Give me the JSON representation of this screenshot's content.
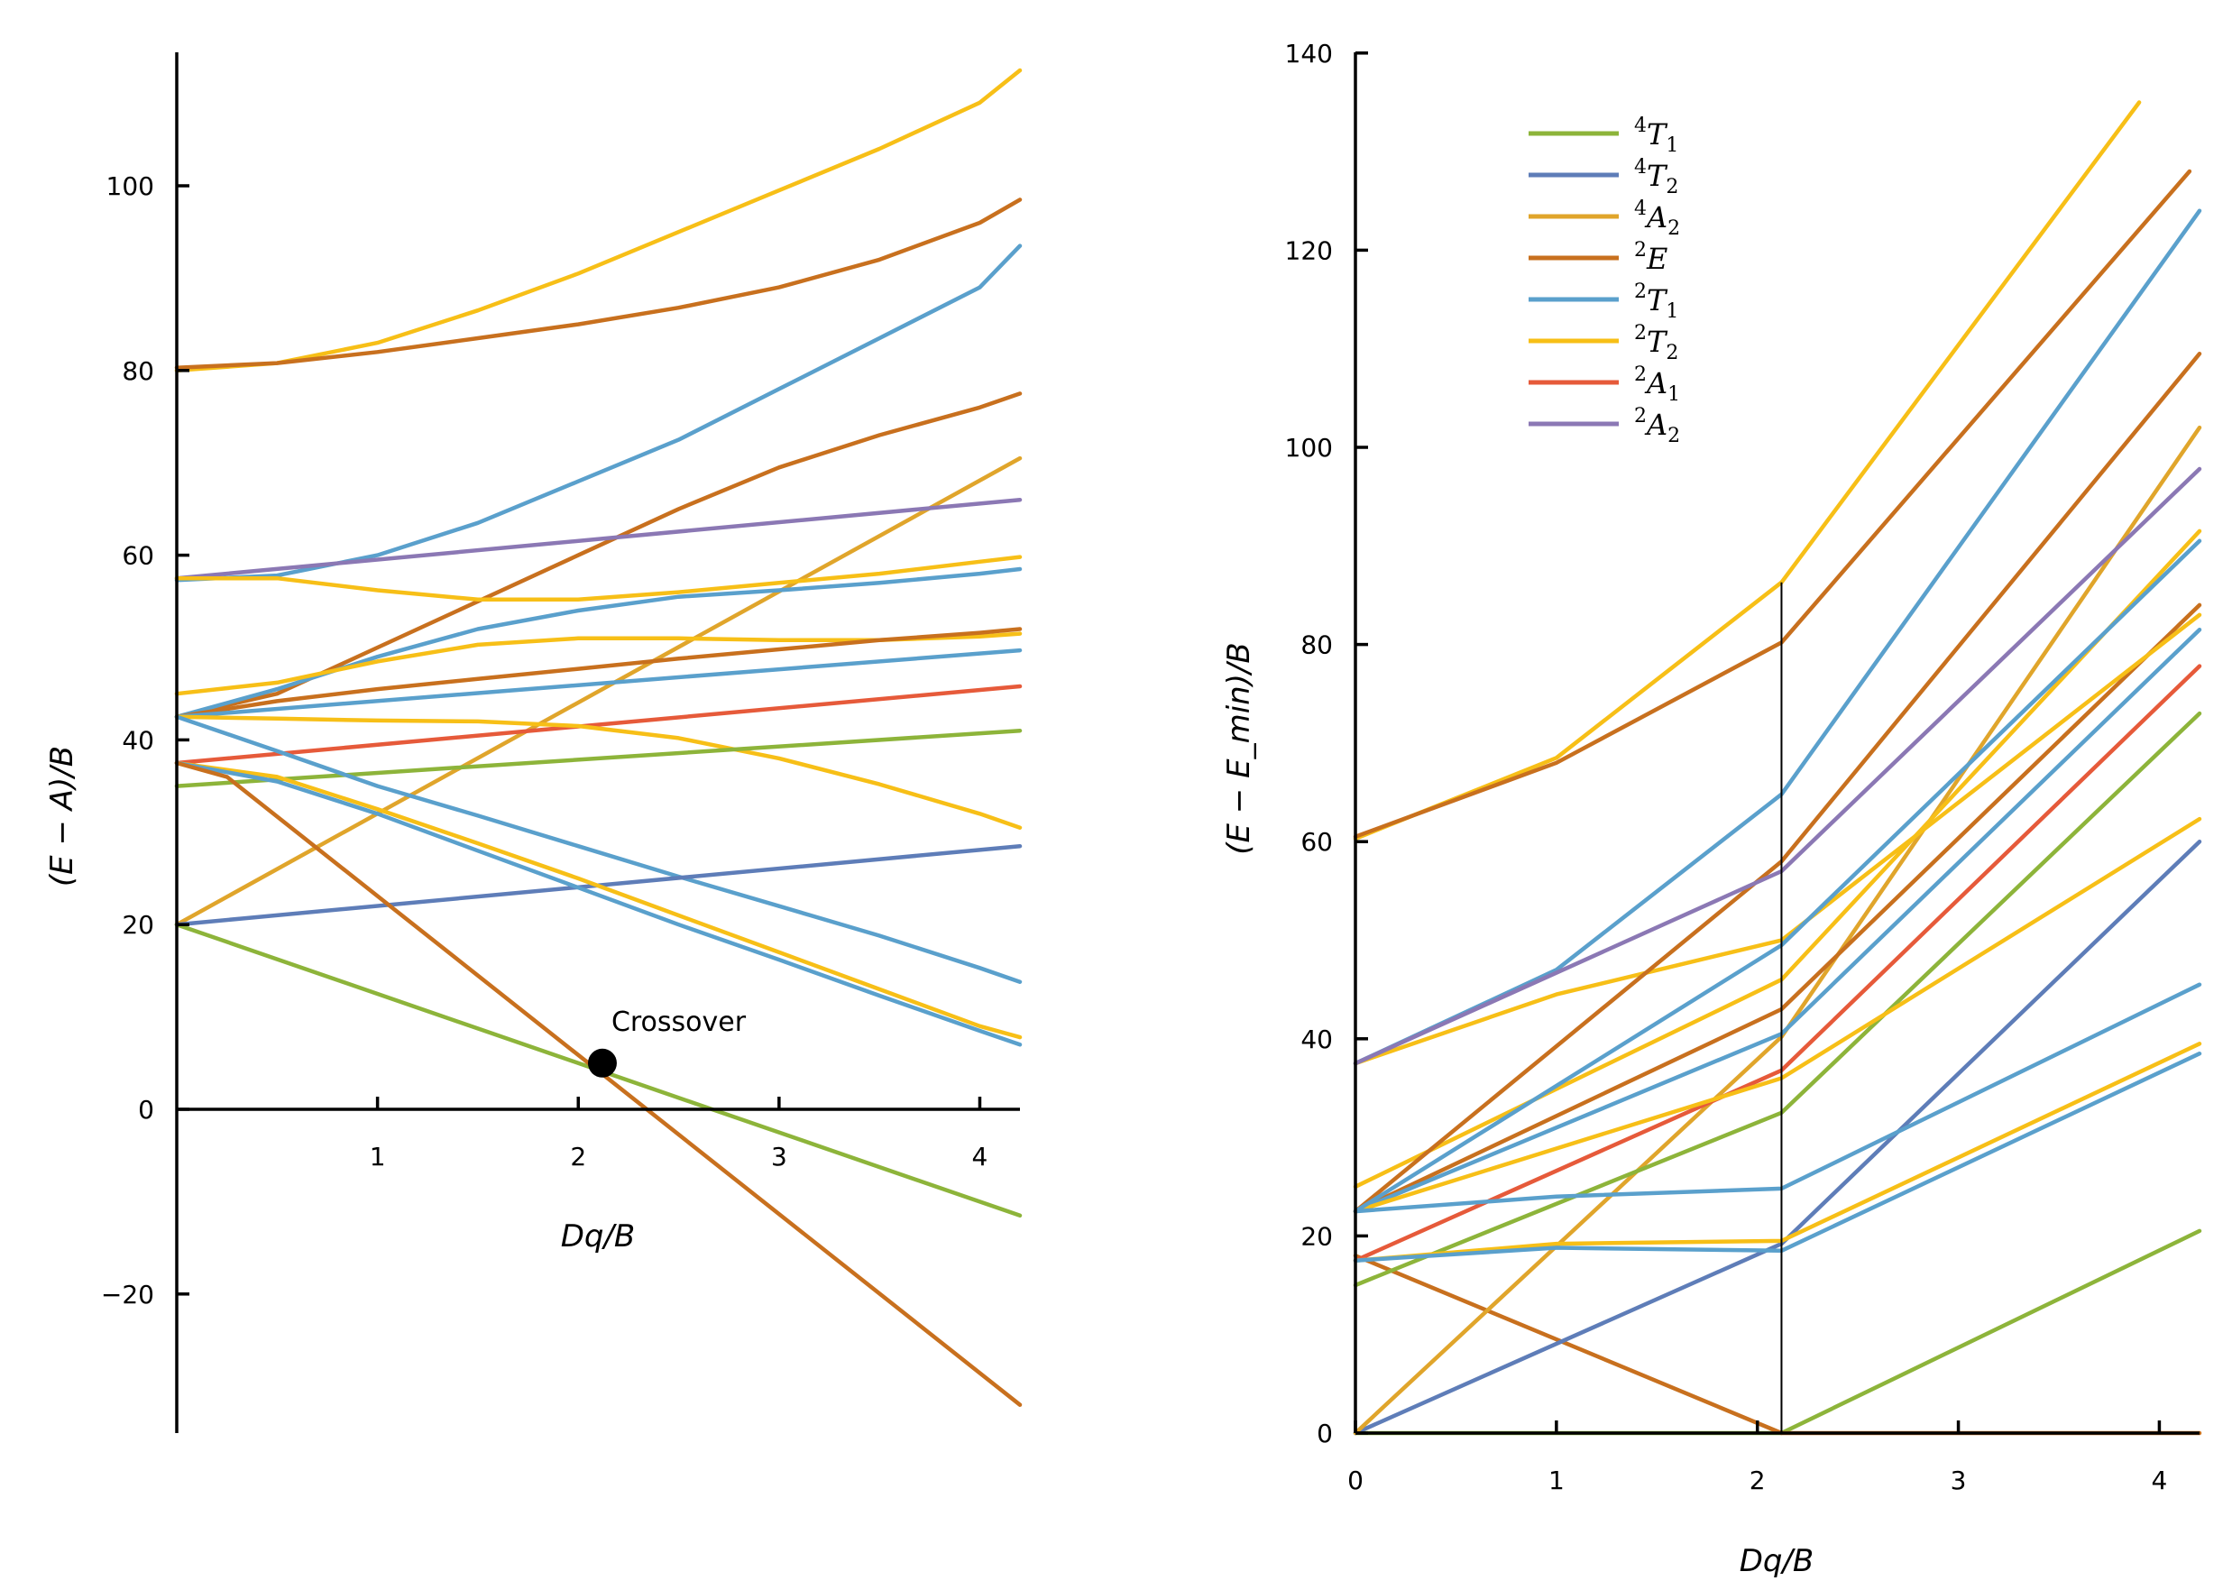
{
  "colors": {
    "T1_4": "#8db43a",
    "T2_4": "#5e7db8",
    "A2_4": "#e0a52b",
    "E_2": "#c8701e",
    "T1_2": "#5aa0cc",
    "T2_2": "#f7bf17",
    "A1_2": "#e65a3a",
    "A2_2": "#8b78b4"
  },
  "chart_data": [
    {
      "type": "line",
      "title": "",
      "xlabel": "Dq/B",
      "ylabel": "(E − A)/B",
      "xlim": [
        0,
        4.2
      ],
      "ylim": [
        -35,
        115
      ],
      "xticks": [
        "1",
        "2",
        "3",
        "4"
      ],
      "yticks": [
        "−20",
        "0",
        "20",
        "40",
        "60",
        "80",
        "100"
      ],
      "grid": false,
      "annotation": {
        "text": "Crossover",
        "x": 2.12,
        "y": 5
      },
      "series": [
        {
          "color_key": "T2_2",
          "x": [
            0,
            0.5,
            1,
            1.5,
            2,
            2.5,
            3,
            3.5,
            4,
            4.2
          ],
          "y": [
            80,
            80.8,
            83,
            86.5,
            90.5,
            95,
            99.5,
            104,
            109,
            112.5
          ]
        },
        {
          "color_key": "E_2",
          "x": [
            0,
            0.5,
            1,
            1.5,
            2,
            2.5,
            3,
            3.5,
            4,
            4.2
          ],
          "y": [
            80.3,
            80.8,
            82,
            83.5,
            85,
            86.8,
            89,
            92,
            96,
            98.5
          ]
        },
        {
          "color_key": "T1_2",
          "x": [
            0,
            0.5,
            1,
            1.5,
            2,
            2.5,
            3,
            3.5,
            4,
            4.2
          ],
          "y": [
            57.3,
            57.8,
            60,
            63.5,
            68,
            72.5,
            78,
            83.5,
            89,
            93.5
          ]
        },
        {
          "color_key": "E_2",
          "x": [
            0,
            0.5,
            1,
            1.5,
            2,
            2.5,
            3,
            3.5,
            4,
            4.2
          ],
          "y": [
            42.5,
            45,
            50,
            55,
            60,
            65,
            69.5,
            73,
            76,
            77.5
          ]
        },
        {
          "color_key": "A2_4",
          "x": [
            0,
            4.2
          ],
          "y": [
            20,
            70.5
          ]
        },
        {
          "color_key": "A2_2",
          "x": [
            0,
            4.2
          ],
          "y": [
            57.5,
            66
          ]
        },
        {
          "color_key": "T2_2",
          "x": [
            0,
            0.5,
            1,
            1.5,
            2,
            2.5,
            3,
            3.5,
            4,
            4.2
          ],
          "y": [
            57.5,
            57.5,
            56.2,
            55.2,
            55.2,
            56,
            57,
            58,
            59.3,
            59.8
          ]
        },
        {
          "color_key": "T1_2",
          "x": [
            0,
            0.5,
            1,
            1.5,
            2,
            2.5,
            3,
            3.5,
            4,
            4.2
          ],
          "y": [
            42.5,
            45.5,
            49,
            52,
            54,
            55.5,
            56.2,
            57,
            58,
            58.5
          ]
        },
        {
          "color_key": "T2_2",
          "x": [
            0,
            0.5,
            1,
            1.5,
            2,
            2.5,
            3,
            3.5,
            4,
            4.2
          ],
          "y": [
            45,
            46.2,
            48.5,
            50.3,
            51,
            51,
            50.8,
            50.8,
            51.2,
            51.5
          ]
        },
        {
          "color_key": "E_2",
          "x": [
            0,
            0.5,
            1,
            1.5,
            2,
            2.5,
            3,
            3.5,
            4,
            4.2
          ],
          "y": [
            42.5,
            44.2,
            45.5,
            46.6,
            47.7,
            48.8,
            49.8,
            50.8,
            51.6,
            52
          ]
        },
        {
          "color_key": "T1_2",
          "x": [
            0,
            4.2
          ],
          "y": [
            42.5,
            49.7
          ]
        },
        {
          "color_key": "A1_2",
          "x": [
            0,
            4.2
          ],
          "y": [
            37.5,
            45.8
          ]
        },
        {
          "color_key": "T2_2",
          "x": [
            0,
            0.5,
            1,
            1.5,
            2,
            2.5,
            3,
            3.5,
            4,
            4.2
          ],
          "y": [
            42.5,
            42.3,
            42.1,
            42,
            41.5,
            40.2,
            38,
            35.2,
            32,
            30.5
          ]
        },
        {
          "color_key": "T1_4",
          "x": [
            0,
            4.2
          ],
          "y": [
            35,
            41
          ]
        },
        {
          "color_key": "T1_2",
          "x": [
            0,
            0.5,
            1,
            1.5,
            2,
            2.5,
            3,
            3.5,
            4,
            4.2
          ],
          "y": [
            42.5,
            38.8,
            35,
            31.8,
            28.5,
            25.2,
            22,
            18.8,
            15.3,
            13.8
          ]
        },
        {
          "color_key": "T2_4",
          "x": [
            0,
            4.2
          ],
          "y": [
            20,
            28.5
          ]
        },
        {
          "color_key": "T2_2",
          "x": [
            0,
            0.5,
            1,
            1.5,
            2,
            2.5,
            3,
            3.5,
            4,
            4.2
          ],
          "y": [
            37.5,
            36,
            32.5,
            28.8,
            25,
            21,
            17,
            13,
            9,
            7.8
          ]
        },
        {
          "color_key": "T1_2",
          "x": [
            0,
            0.5,
            1,
            1.5,
            2,
            2.5,
            3,
            3.5,
            4,
            4.2
          ],
          "y": [
            37.5,
            35.5,
            32,
            28,
            24,
            20,
            16.2,
            12.3,
            8.5,
            7
          ]
        },
        {
          "color_key": "T1_4",
          "x": [
            0,
            4.2
          ],
          "y": [
            20,
            -11.5
          ]
        },
        {
          "color_key": "E_2",
          "x": [
            0,
            0.25,
            4.2
          ],
          "y": [
            37.5,
            36,
            -32
          ]
        }
      ]
    },
    {
      "type": "line",
      "title": "",
      "xlabel": "Dq/B",
      "ylabel": "(E − E_min)/B",
      "xlim": [
        0,
        4.2
      ],
      "ylim": [
        0,
        140
      ],
      "xticks": [
        "0",
        "1",
        "2",
        "3",
        "4"
      ],
      "yticks": [
        "0",
        "20",
        "40",
        "60",
        "80",
        "100",
        "120",
        "140"
      ],
      "grid": false,
      "crossover_x": 2.12,
      "legend": {
        "placement": "top-left",
        "entries": [
          {
            "sup": "4",
            "base": "T",
            "sub": "1",
            "color_key": "T1_4"
          },
          {
            "sup": "4",
            "base": "T",
            "sub": "2",
            "color_key": "T2_4"
          },
          {
            "sup": "4",
            "base": "A",
            "sub": "2",
            "color_key": "A2_4"
          },
          {
            "sup": "2",
            "base": "E",
            "sub": "",
            "color_key": "E_2"
          },
          {
            "sup": "2",
            "base": "T",
            "sub": "1",
            "color_key": "T1_2"
          },
          {
            "sup": "2",
            "base": "T",
            "sub": "2",
            "color_key": "T2_2"
          },
          {
            "sup": "2",
            "base": "A",
            "sub": "1",
            "color_key": "A1_2"
          },
          {
            "sup": "2",
            "base": "A",
            "sub": "2",
            "color_key": "A2_2"
          }
        ]
      },
      "series": [
        {
          "color_key": "T1_4",
          "x": [
            0,
            2.12,
            4.2
          ],
          "y": [
            0,
            0,
            20.5
          ]
        },
        {
          "color_key": "E_2",
          "x": [
            0,
            2.12,
            4.2
          ],
          "y": [
            18,
            0,
            0
          ]
        },
        {
          "color_key": "T2_4",
          "x": [
            0,
            2.12,
            4.2
          ],
          "y": [
            0,
            19.2,
            60
          ]
        },
        {
          "color_key": "A2_4",
          "x": [
            0,
            2.12,
            4.2
          ],
          "y": [
            0,
            40.2,
            102
          ]
        },
        {
          "color_key": "T1_4",
          "x": [
            0,
            2.12,
            4.2
          ],
          "y": [
            15,
            32.5,
            73
          ]
        },
        {
          "color_key": "E_2",
          "x": [
            0,
            2.12,
            4.2
          ],
          "y": [
            22.5,
            43,
            84
          ]
        },
        {
          "color_key": "T1_2",
          "x": [
            0,
            2.12,
            4.2
          ],
          "y": [
            22.5,
            40.5,
            81.5
          ]
        },
        {
          "color_key": "A1_2",
          "x": [
            0,
            2.12,
            4.2
          ],
          "y": [
            17.5,
            36.8,
            77.8
          ]
        },
        {
          "color_key": "T2_2",
          "x": [
            0,
            2.12,
            4.2
          ],
          "y": [
            22.5,
            36,
            62.3
          ]
        },
        {
          "color_key": "T1_2",
          "x": [
            0,
            1,
            2.12,
            4.2
          ],
          "y": [
            22.5,
            24,
            24.8,
            45.5
          ]
        },
        {
          "color_key": "T2_2",
          "x": [
            0,
            1,
            2.12,
            4.2
          ],
          "y": [
            17.5,
            19.2,
            19.5,
            39.5
          ]
        },
        {
          "color_key": "T1_2",
          "x": [
            0,
            1,
            2.12,
            4.2
          ],
          "y": [
            17.5,
            18.8,
            18.5,
            38.5
          ]
        },
        {
          "color_key": "T2_2",
          "x": [
            0,
            2.12,
            4.2
          ],
          "y": [
            25,
            46,
            91.5
          ]
        },
        {
          "color_key": "T2_2",
          "x": [
            0,
            1,
            2.12,
            4.2
          ],
          "y": [
            37.5,
            44.5,
            50,
            83
          ]
        },
        {
          "color_key": "T1_2",
          "x": [
            0,
            1,
            2.12,
            4.2
          ],
          "y": [
            37.5,
            47,
            64.8,
            124
          ]
        },
        {
          "color_key": "E_2",
          "x": [
            0,
            2.12,
            4.2
          ],
          "y": [
            22.5,
            58,
            109.5
          ]
        },
        {
          "color_key": "T1_2",
          "x": [
            0,
            2.12,
            4.2
          ],
          "y": [
            22.5,
            49.5,
            90.5
          ]
        },
        {
          "color_key": "A2_2",
          "x": [
            0,
            2.12,
            4.2
          ],
          "y": [
            37.5,
            57,
            97.8
          ]
        },
        {
          "color_key": "T2_2",
          "x": [
            0,
            1,
            2.12,
            3.9
          ],
          "y": [
            60.3,
            68.5,
            86.3,
            135
          ]
        },
        {
          "color_key": "E_2",
          "x": [
            0,
            1,
            2.12,
            4.15
          ],
          "y": [
            60.5,
            68,
            80.2,
            128
          ]
        }
      ]
    }
  ]
}
